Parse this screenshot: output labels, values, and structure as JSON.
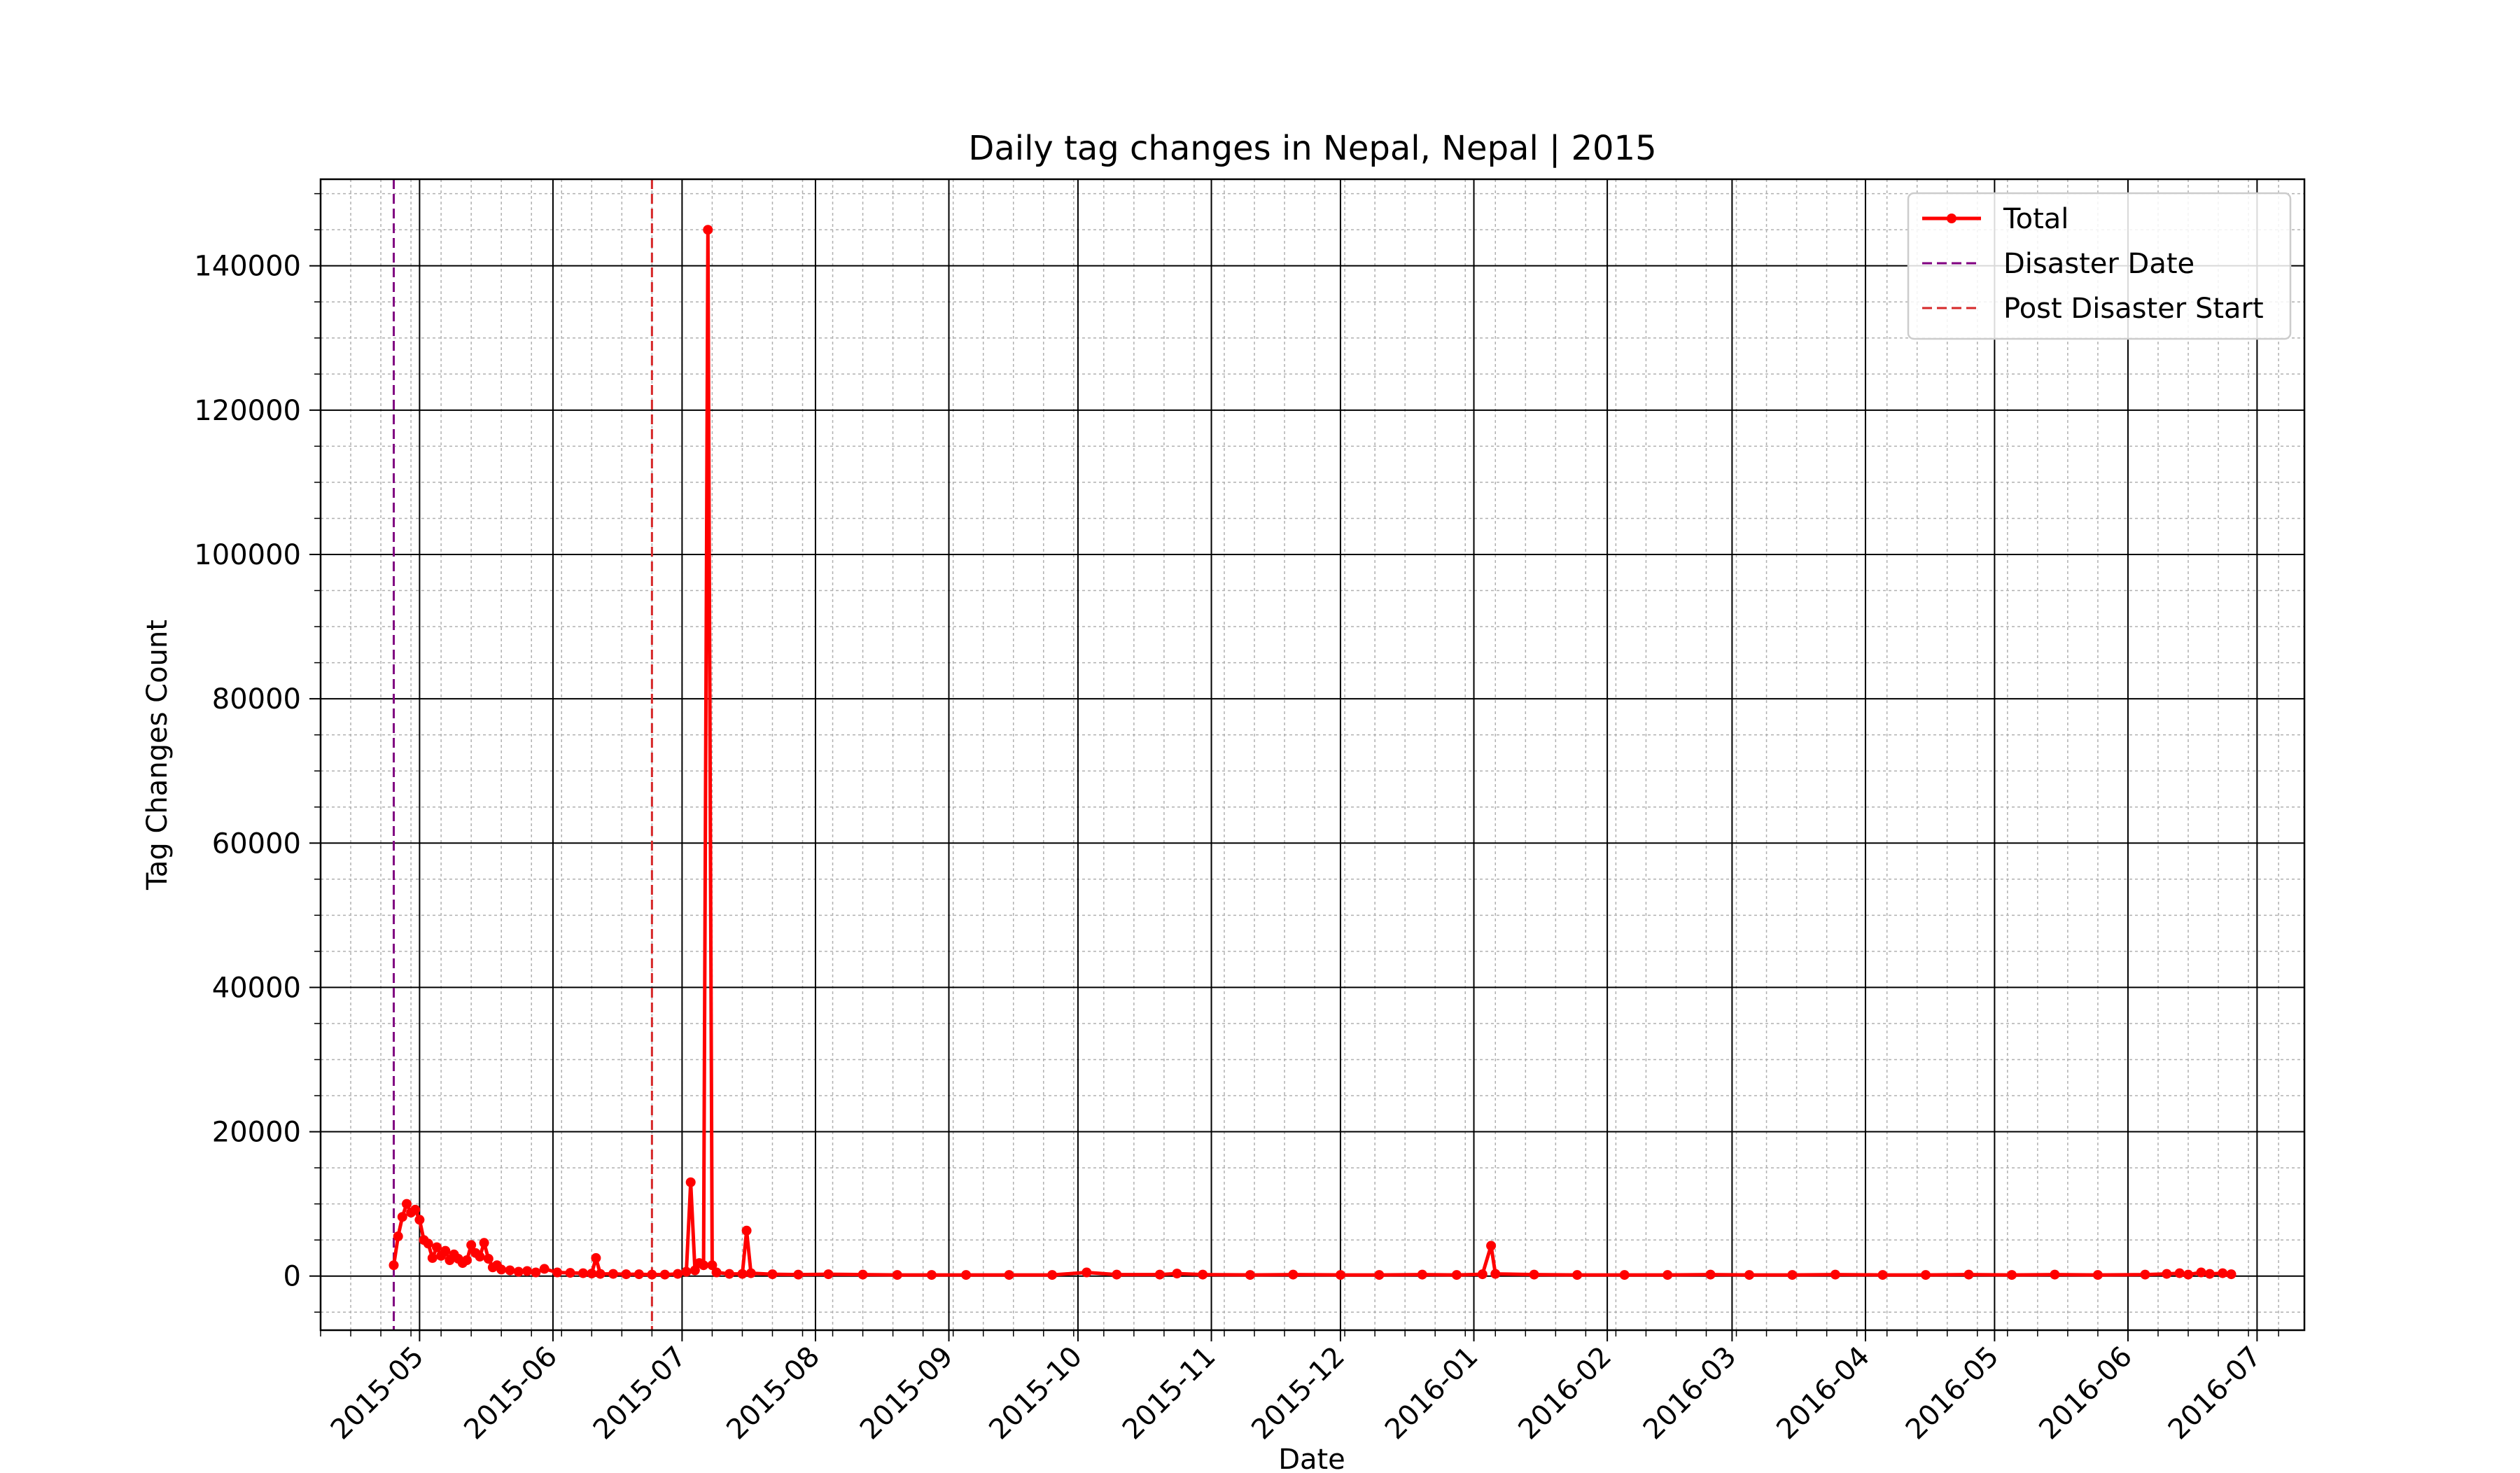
{
  "chart_data": {
    "type": "line",
    "title": "Daily tag changes in Nepal, Nepal | 2015",
    "xlabel": "Date",
    "ylabel": "Tag Changes Count",
    "xlim": [
      "2015-04-08",
      "2016-07-12"
    ],
    "ylim": [
      -7500,
      152000
    ],
    "grid": "major and minor",
    "legend_position": "top-right",
    "x_ticks": [
      "2015-05",
      "2015-06",
      "2015-07",
      "2015-08",
      "2015-09",
      "2015-10",
      "2015-11",
      "2015-12",
      "2016-01",
      "2016-02",
      "2016-03",
      "2016-04",
      "2016-05",
      "2016-06",
      "2016-07"
    ],
    "x_tick_dates": [
      "2015-05-01",
      "2015-06-01",
      "2015-07-01",
      "2015-08-01",
      "2015-09-01",
      "2015-10-01",
      "2015-11-01",
      "2015-12-01",
      "2016-01-01",
      "2016-02-01",
      "2016-03-01",
      "2016-04-01",
      "2016-05-01",
      "2016-06-01",
      "2016-07-01"
    ],
    "y_ticks": [
      0,
      20000,
      40000,
      60000,
      80000,
      100000,
      120000,
      140000
    ],
    "y_tick_labels": [
      "0",
      "20000",
      "40000",
      "60000",
      "80000",
      "100000",
      "120000",
      "140000"
    ],
    "series": [
      {
        "name": "Total",
        "color": "#ff0000",
        "marker": "circle",
        "points": [
          [
            "2015-04-25",
            1500
          ],
          [
            "2015-04-26",
            5500
          ],
          [
            "2015-04-27",
            8200
          ],
          [
            "2015-04-28",
            10000
          ],
          [
            "2015-04-29",
            8800
          ],
          [
            "2015-04-30",
            9200
          ],
          [
            "2015-05-01",
            7800
          ],
          [
            "2015-05-02",
            5000
          ],
          [
            "2015-05-03",
            4500
          ],
          [
            "2015-05-04",
            2500
          ],
          [
            "2015-05-05",
            4000
          ],
          [
            "2015-05-06",
            2800
          ],
          [
            "2015-05-07",
            3500
          ],
          [
            "2015-05-08",
            2200
          ],
          [
            "2015-05-09",
            3000
          ],
          [
            "2015-05-10",
            2400
          ],
          [
            "2015-05-11",
            1800
          ],
          [
            "2015-05-12",
            2200
          ],
          [
            "2015-05-13",
            4300
          ],
          [
            "2015-05-14",
            3200
          ],
          [
            "2015-05-15",
            2700
          ],
          [
            "2015-05-16",
            4600
          ],
          [
            "2015-05-17",
            2400
          ],
          [
            "2015-05-18",
            1200
          ],
          [
            "2015-05-19",
            1500
          ],
          [
            "2015-05-20",
            900
          ],
          [
            "2015-05-22",
            800
          ],
          [
            "2015-05-24",
            600
          ],
          [
            "2015-05-26",
            700
          ],
          [
            "2015-05-28",
            500
          ],
          [
            "2015-05-30",
            1000
          ],
          [
            "2015-06-02",
            500
          ],
          [
            "2015-06-05",
            450
          ],
          [
            "2015-06-08",
            400
          ],
          [
            "2015-06-10",
            350
          ],
          [
            "2015-06-11",
            2500
          ],
          [
            "2015-06-12",
            300
          ],
          [
            "2015-06-15",
            300
          ],
          [
            "2015-06-18",
            250
          ],
          [
            "2015-06-21",
            250
          ],
          [
            "2015-06-24",
            200
          ],
          [
            "2015-06-27",
            200
          ],
          [
            "2015-06-30",
            300
          ],
          [
            "2015-07-02",
            600
          ],
          [
            "2015-07-03",
            13000
          ],
          [
            "2015-07-04",
            800
          ],
          [
            "2015-07-05",
            1800
          ],
          [
            "2015-07-06",
            1500
          ],
          [
            "2015-07-07",
            145000
          ],
          [
            "2015-07-08",
            1500
          ],
          [
            "2015-07-09",
            500
          ],
          [
            "2015-07-12",
            300
          ],
          [
            "2015-07-15",
            300
          ],
          [
            "2015-07-16",
            6300
          ],
          [
            "2015-07-17",
            400
          ],
          [
            "2015-07-22",
            250
          ],
          [
            "2015-07-28",
            200
          ],
          [
            "2015-08-04",
            250
          ],
          [
            "2015-08-12",
            200
          ],
          [
            "2015-08-20",
            150
          ],
          [
            "2015-08-28",
            150
          ],
          [
            "2015-09-05",
            150
          ],
          [
            "2015-09-15",
            150
          ],
          [
            "2015-09-25",
            150
          ],
          [
            "2015-10-03",
            500
          ],
          [
            "2015-10-10",
            200
          ],
          [
            "2015-10-20",
            200
          ],
          [
            "2015-10-24",
            350
          ],
          [
            "2015-10-30",
            200
          ],
          [
            "2015-11-10",
            150
          ],
          [
            "2015-11-20",
            200
          ],
          [
            "2015-12-01",
            150
          ],
          [
            "2015-12-10",
            150
          ],
          [
            "2015-12-20",
            200
          ],
          [
            "2015-12-28",
            150
          ],
          [
            "2016-01-03",
            250
          ],
          [
            "2016-01-05",
            4200
          ],
          [
            "2016-01-06",
            300
          ],
          [
            "2016-01-15",
            200
          ],
          [
            "2016-01-25",
            150
          ],
          [
            "2016-02-05",
            150
          ],
          [
            "2016-02-15",
            150
          ],
          [
            "2016-02-25",
            200
          ],
          [
            "2016-03-05",
            150
          ],
          [
            "2016-03-15",
            150
          ],
          [
            "2016-03-25",
            200
          ],
          [
            "2016-04-05",
            150
          ],
          [
            "2016-04-15",
            150
          ],
          [
            "2016-04-25",
            200
          ],
          [
            "2016-05-05",
            150
          ],
          [
            "2016-05-15",
            200
          ],
          [
            "2016-05-25",
            150
          ],
          [
            "2016-06-05",
            200
          ],
          [
            "2016-06-10",
            300
          ],
          [
            "2016-06-13",
            400
          ],
          [
            "2016-06-15",
            200
          ],
          [
            "2016-06-18",
            500
          ],
          [
            "2016-06-20",
            300
          ],
          [
            "2016-06-23",
            400
          ],
          [
            "2016-06-25",
            250
          ]
        ]
      }
    ],
    "reference_lines": [
      {
        "name": "Disaster Date",
        "date": "2015-04-25",
        "color": "#800080",
        "style": "dashed"
      },
      {
        "name": "Post Disaster Start",
        "date": "2015-06-24",
        "color": "#d62728",
        "style": "dashed"
      }
    ]
  }
}
